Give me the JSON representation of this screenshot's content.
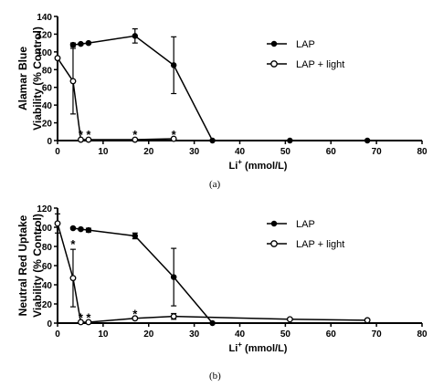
{
  "figure": {
    "labels": [
      "(a)",
      "(b)"
    ]
  },
  "chart_data": [
    {
      "type": "line",
      "panel": "(a)",
      "ylabel": "Alamar Blue\nViability (% Control)",
      "xlabel": "Li+ (mmol/L)",
      "xlabel_main": "Li",
      "xlabel_sup": "+",
      "xlabel_unit": " (mmol/L)",
      "xlim": [
        0,
        80
      ],
      "ylim": [
        0,
        140
      ],
      "xticks": [
        "0",
        "10",
        "20",
        "30",
        "40",
        "50",
        "60",
        "70",
        "80"
      ],
      "yticks": [
        "0",
        "20",
        "40",
        "60",
        "80",
        "100",
        "120",
        "140"
      ],
      "grid": false,
      "legend_position": "top-right",
      "series": [
        {
          "name": "LAP",
          "marker": "filled-circle",
          "x": [
            3.4,
            5.1,
            6.8,
            17,
            25.5,
            34,
            51,
            68
          ],
          "y": [
            108,
            109,
            110,
            118,
            85,
            0,
            0,
            0
          ],
          "err": [
            2,
            1,
            1,
            8,
            32,
            0,
            0,
            0
          ]
        },
        {
          "name": "LAP + light",
          "marker": "open-circle",
          "x": [
            0,
            3.4,
            5.1,
            6.8,
            17,
            25.5
          ],
          "y": [
            93,
            67,
            1,
            1,
            1,
            2
          ],
          "err": [
            0,
            37,
            0,
            0,
            0,
            0
          ]
        }
      ],
      "annotations": [
        {
          "text": "*",
          "x": 5.1,
          "y": 8
        },
        {
          "text": "*",
          "x": 6.8,
          "y": 8
        },
        {
          "text": "*",
          "x": 17,
          "y": 8
        },
        {
          "text": "*",
          "x": 25.5,
          "y": 8
        }
      ]
    },
    {
      "type": "line",
      "panel": "(b)",
      "ylabel": "Neutral  Red Uptake\nViability (% Control)",
      "xlabel": "Li+ (mmol/L)",
      "xlabel_main": "Li",
      "xlabel_sup": "+",
      "xlabel_unit": " (mmol/L)",
      "xlim": [
        0,
        80
      ],
      "ylim": [
        0,
        120
      ],
      "xticks": [
        "0",
        "10",
        "20",
        "30",
        "40",
        "50",
        "60",
        "70",
        "80"
      ],
      "yticks": [
        "0",
        "20",
        "40",
        "60",
        "80",
        "100",
        "120"
      ],
      "grid": false,
      "legend_position": "top-right",
      "series": [
        {
          "name": "LAP",
          "marker": "filled-circle",
          "x": [
            3.4,
            5.1,
            6.8,
            17,
            25.5,
            34
          ],
          "y": [
            99,
            98,
            97,
            91,
            48,
            0
          ],
          "err": [
            1,
            1,
            2,
            3,
            30,
            0
          ]
        },
        {
          "name": "LAP + light",
          "marker": "open-circle",
          "x": [
            0,
            3.4,
            5.1,
            6.8,
            17,
            25.5,
            51,
            68
          ],
          "y": [
            104,
            47,
            1,
            1,
            5,
            7,
            4,
            3
          ],
          "err": [
            10,
            30,
            1,
            1,
            1,
            3,
            1,
            1
          ]
        }
      ],
      "annotations": [
        {
          "text": "*",
          "x": 3.4,
          "y": 84
        },
        {
          "text": "*",
          "x": 5.1,
          "y": 7
        },
        {
          "text": "*",
          "x": 6.8,
          "y": 7
        },
        {
          "text": "*",
          "x": 17,
          "y": 11
        }
      ]
    }
  ]
}
